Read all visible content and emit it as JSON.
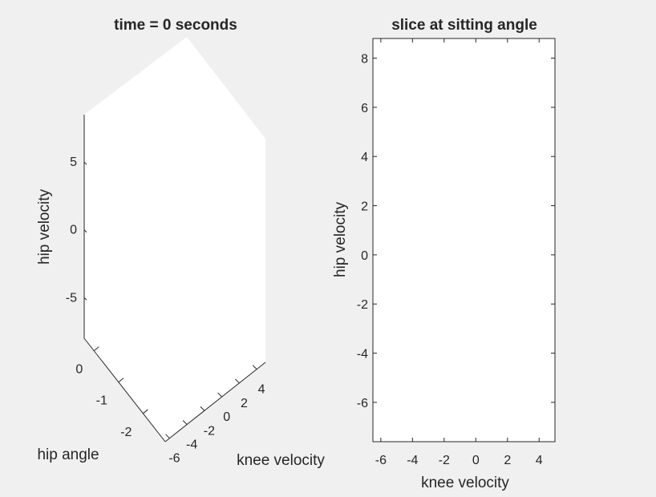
{
  "chart_data": [
    {
      "type": "surface",
      "title": "time = 0 seconds",
      "xlabel": "knee velocity",
      "ylabel": "hip angle",
      "zlabel": "hip velocity",
      "xlim": [
        -6.5,
        5
      ],
      "ylim": [
        -2.9,
        0.4
      ],
      "zlim": [
        -8,
        8.5
      ],
      "xticks": [
        -6,
        -4,
        -2,
        0,
        2,
        4
      ],
      "yticks": [
        -2,
        -1,
        0
      ],
      "zticks": [
        -5,
        0,
        5
      ],
      "grid": false
    },
    {
      "type": "scatter",
      "title": "slice at sitting angle",
      "xlabel": "knee velocity",
      "ylabel": "hip velocity",
      "xlim": [
        -6.5,
        5
      ],
      "ylim": [
        -7.6,
        8.8
      ],
      "xticks": [
        -6,
        -4,
        -2,
        0,
        2,
        4
      ],
      "yticks": [
        -6,
        -4,
        -2,
        0,
        2,
        4,
        6,
        8
      ],
      "series": [],
      "grid": false
    }
  ]
}
